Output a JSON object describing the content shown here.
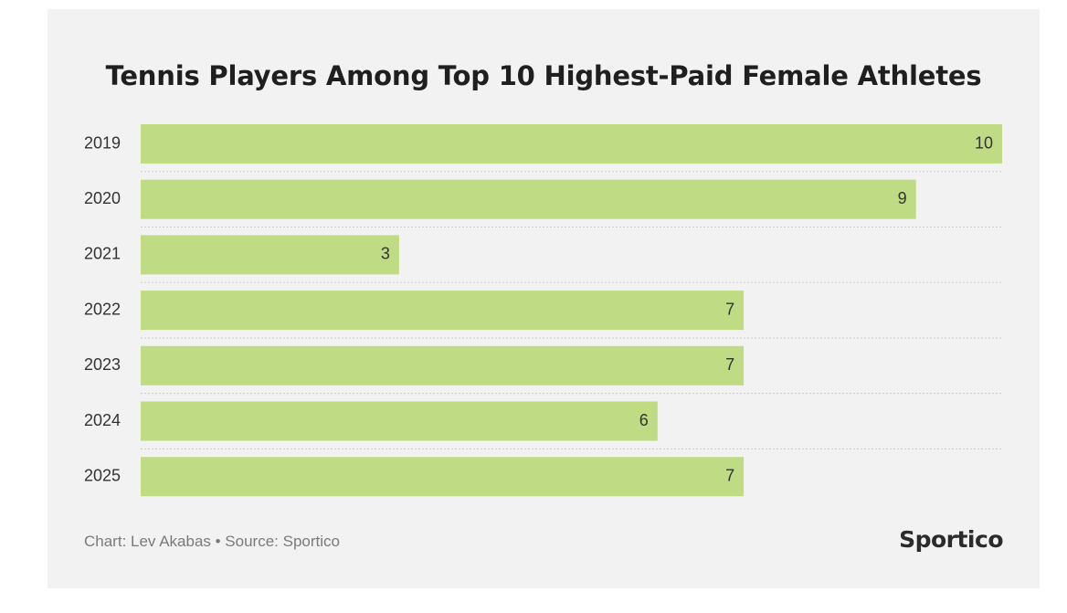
{
  "chart_data": {
    "type": "bar",
    "orientation": "horizontal",
    "title": "Tennis Players Among Top 10 Highest-Paid Female Athletes",
    "categories": [
      "2019",
      "2020",
      "2021",
      "2022",
      "2023",
      "2024",
      "2025"
    ],
    "values": [
      10,
      9,
      3,
      7,
      7,
      6,
      7
    ],
    "xlim": [
      0,
      10
    ],
    "xlabel": "",
    "ylabel": "",
    "grid": true,
    "legend": "none",
    "bar_color": "#bfdb84"
  },
  "footer": {
    "credit": "Chart: Lev Akabas • Source: Sportico",
    "brand": "Sportico"
  },
  "colors": {
    "background": "#f2f2f2",
    "text": "#333333",
    "grid": "#cccccc"
  }
}
